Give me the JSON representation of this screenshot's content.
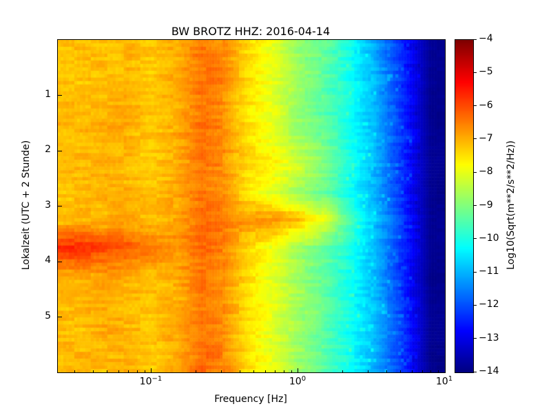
{
  "chart_data": {
    "type": "heatmap",
    "title": "BW BROTZ HHZ: 2016-04-14",
    "xlabel": "Frequency [Hz]",
    "ylabel": "Lokalzeit (UTC + 2 Stunde)",
    "colorbar_label": "Log10(Sqrt(m**2/s**2/Hz))",
    "colormap": "jet",
    "x_scale": "log",
    "x_range_hz": [
      0.023,
      10
    ],
    "y_range_hours": [
      0,
      6
    ],
    "value_range": [
      -14,
      -4
    ],
    "x_major_ticks": [
      {
        "base": "10",
        "exp": "−1",
        "value_hz": 0.1
      },
      {
        "base": "10",
        "exp": "0",
        "value_hz": 1
      },
      {
        "base": "10",
        "exp": "1",
        "value_hz": 10
      }
    ],
    "y_major_ticks": [
      {
        "label": "1",
        "value_hours": 1
      },
      {
        "label": "2",
        "value_hours": 2
      },
      {
        "label": "3",
        "value_hours": 3
      },
      {
        "label": "4",
        "value_hours": 4
      },
      {
        "label": "5",
        "value_hours": 5
      }
    ],
    "colorbar_ticks": [
      {
        "label": "−4",
        "value": -4
      },
      {
        "label": "−5",
        "value": -5
      },
      {
        "label": "−6",
        "value": -6
      },
      {
        "label": "−7",
        "value": -7
      },
      {
        "label": "−8",
        "value": -8
      },
      {
        "label": "−9",
        "value": -9
      },
      {
        "label": "−10",
        "value": -10
      },
      {
        "label": "−11",
        "value": -11
      },
      {
        "label": "−12",
        "value": -12
      },
      {
        "label": "−13",
        "value": -13
      },
      {
        "label": "−14",
        "value": -14
      }
    ],
    "freqs_hz": [
      0.023,
      0.033,
      0.047,
      0.068,
      0.1,
      0.15,
      0.22,
      0.3,
      0.45,
      0.7,
      1.0,
      1.5,
      2.2,
      3.2,
      5.0,
      8.0
    ],
    "times_hours": [
      0.25,
      0.75,
      1.25,
      1.75,
      2.25,
      2.75,
      3.25,
      3.75,
      4.25,
      4.75,
      5.25,
      5.75
    ],
    "values_log10_psd": [
      [
        -7.3,
        -7.1,
        -7.2,
        -7.0,
        -7.2,
        -7.0,
        -6.4,
        -6.6,
        -7.4,
        -8.1,
        -8.8,
        -9.3,
        -10.0,
        -10.9,
        -12.3,
        -13.8
      ],
      [
        -7.1,
        -7.2,
        -7.0,
        -7.1,
        -7.3,
        -6.9,
        -6.3,
        -6.5,
        -7.4,
        -8.0,
        -8.7,
        -9.3,
        -10.1,
        -10.8,
        -12.2,
        -13.8
      ],
      [
        -7.2,
        -7.0,
        -7.1,
        -6.9,
        -7.2,
        -7.0,
        -6.4,
        -6.6,
        -7.5,
        -8.1,
        -8.8,
        -9.4,
        -10.1,
        -10.9,
        -12.3,
        -13.9
      ],
      [
        -7.0,
        -7.1,
        -6.9,
        -7.0,
        -7.2,
        -6.9,
        -6.3,
        -6.5,
        -7.4,
        -8.0,
        -8.6,
        -9.2,
        -10.0,
        -10.8,
        -12.2,
        -13.8
      ],
      [
        -7.2,
        -7.0,
        -7.0,
        -7.1,
        -7.3,
        -7.0,
        -6.4,
        -6.6,
        -7.4,
        -7.7,
        -8.2,
        -8.9,
        -10.0,
        -10.8,
        -12.2,
        -13.8
      ],
      [
        -7.1,
        -7.2,
        -7.0,
        -7.0,
        -7.2,
        -6.9,
        -6.4,
        -6.6,
        -7.5,
        -8.1,
        -8.7,
        -9.3,
        -10.1,
        -10.9,
        -12.3,
        -13.9
      ],
      [
        -7.2,
        -7.0,
        -7.1,
        -6.9,
        -7.1,
        -6.9,
        -6.3,
        -6.4,
        -6.8,
        -6.7,
        -7.1,
        -7.9,
        -9.4,
        -10.7,
        -12.1,
        -13.8
      ],
      [
        -5.7,
        -5.6,
        -5.9,
        -6.1,
        -6.5,
        -6.7,
        -6.3,
        -6.5,
        -7.3,
        -8.0,
        -8.6,
        -9.2,
        -10.0,
        -10.8,
        -12.2,
        -13.8
      ],
      [
        -6.9,
        -7.0,
        -6.8,
        -7.0,
        -7.1,
        -6.9,
        -6.4,
        -6.6,
        -7.4,
        -8.1,
        -8.7,
        -9.3,
        -10.0,
        -10.9,
        -12.3,
        -13.9
      ],
      [
        -7.2,
        -7.1,
        -7.0,
        -7.1,
        -7.2,
        -7.0,
        -6.4,
        -6.6,
        -7.4,
        -8.0,
        -8.6,
        -9.2,
        -10.0,
        -10.8,
        -12.1,
        -13.8
      ],
      [
        -7.0,
        -7.2,
        -6.9,
        -7.0,
        -7.2,
        -6.9,
        -6.4,
        -6.6,
        -7.5,
        -8.1,
        -8.7,
        -9.4,
        -10.1,
        -10.7,
        -12.0,
        -13.8
      ],
      [
        -7.2,
        -7.0,
        -7.1,
        -7.0,
        -7.3,
        -7.0,
        -6.3,
        -6.5,
        -7.4,
        -8.1,
        -8.7,
        -9.3,
        -10.1,
        -10.9,
        -12.2,
        -13.9
      ]
    ]
  }
}
